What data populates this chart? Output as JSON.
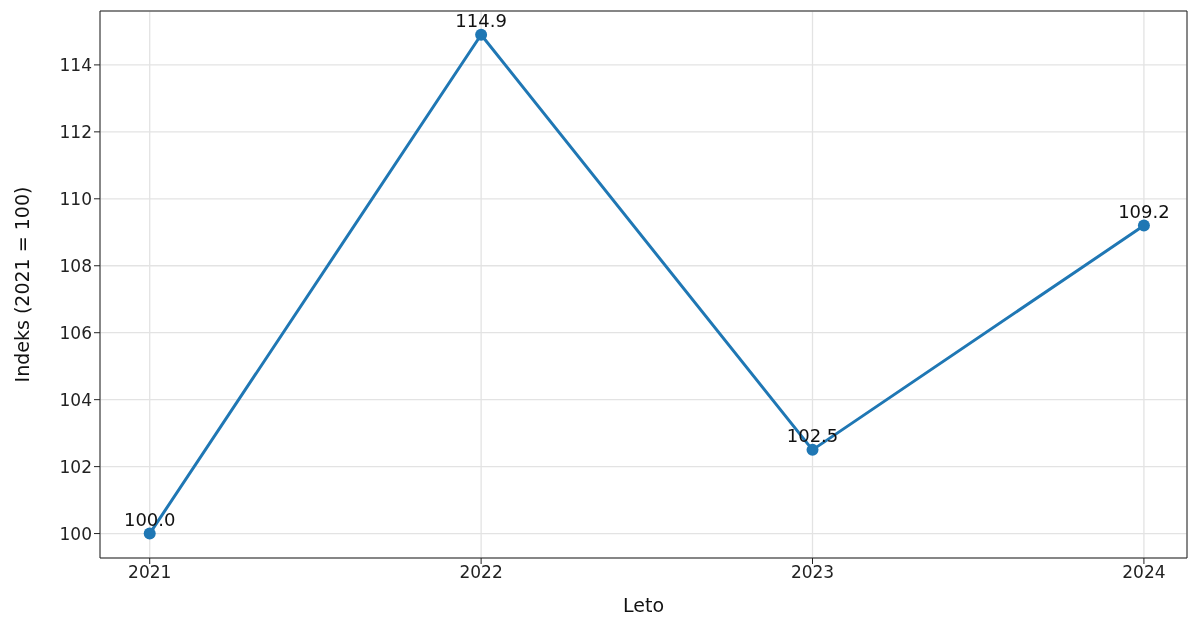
{
  "chart_data": {
    "type": "line",
    "xlabel": "Leto",
    "ylabel": "Indeks (2021 = 100)",
    "x": [
      2021,
      2022,
      2023,
      2024
    ],
    "series": [
      {
        "color": "#1f77b4",
        "values": [
          100,
          114.9,
          102.5,
          109.2
        ],
        "value_labels": [
          "100.0",
          "114.9",
          "102.5",
          "109.2"
        ]
      }
    ],
    "xlim": [
      2020.85,
      2024.13
    ],
    "xticks": [
      2021,
      2022,
      2023,
      2024
    ],
    "ylim": [
      99.27,
      115.61
    ],
    "yticks": [
      100,
      102,
      104,
      106,
      108,
      110,
      112,
      114
    ],
    "grid": true,
    "marker": "circle",
    "line_style": "solid"
  }
}
